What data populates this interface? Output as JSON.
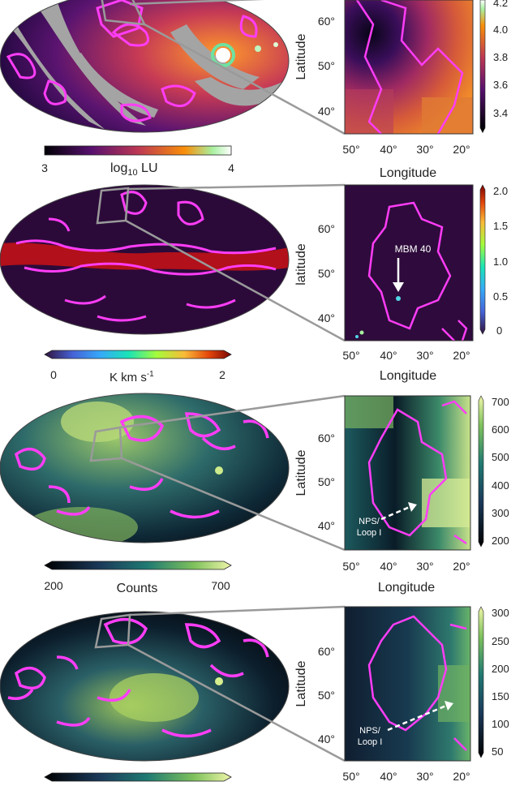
{
  "panels": [
    {
      "id": "lu",
      "cbar_ticks": [
        "3",
        "4"
      ],
      "cbar_label": "log",
      "cbar_label_sub": "10",
      "cbar_label_tail": " LU",
      "zoom_lat_ticks": [
        "60°",
        "50°",
        "40°"
      ],
      "zoom_lon_ticks": [
        "50°",
        "40°",
        "30°",
        "20°"
      ],
      "zoom_ylabel": "Latitude",
      "zoom_xlabel": "Longitude",
      "side_cbar_ticks": [
        "4.2",
        "4.0",
        "3.8",
        "3.6",
        "3.4"
      ],
      "colors": {
        "bg_map": "#6a1e74",
        "hot": "#e8813a",
        "cold": "#1b0c3a"
      }
    },
    {
      "id": "co",
      "cbar_ticks": [
        "0",
        "2"
      ],
      "cbar_label": "K km s",
      "cbar_label_sup": "-1",
      "zoom_lat_ticks": [
        "60°",
        "50°",
        "40°"
      ],
      "zoom_lon_ticks": [
        "50°",
        "40°",
        "30°",
        "20°"
      ],
      "zoom_ylabel": "latitude",
      "zoom_xlabel": "Longitude",
      "side_cbar_ticks": [
        "2.0",
        "1.5",
        "1.0",
        "0.5",
        "0"
      ],
      "annotation": "MBM 40"
    },
    {
      "id": "xray1",
      "cbar_ticks": [
        "200",
        "700"
      ],
      "cbar_label": "Counts",
      "zoom_lat_ticks": [
        "60°",
        "50°",
        "40°"
      ],
      "zoom_lon_ticks": [
        "50°",
        "40°",
        "30°",
        "20°"
      ],
      "zoom_ylabel": "Latitude",
      "zoom_xlabel": "Longitude",
      "side_cbar_ticks": [
        "700",
        "600",
        "500",
        "400",
        "300",
        "200"
      ],
      "annotation": "NPS/\nLoop I",
      "annotation_line1": "NPS/",
      "annotation_line2": "Loop I"
    },
    {
      "id": "xray2",
      "zoom_lat_ticks": [
        "60°",
        "50°",
        "40°"
      ],
      "zoom_lon_ticks": [
        "50°",
        "40°",
        "30°",
        "20°"
      ],
      "zoom_ylabel": "Latitude",
      "side_cbar_ticks": [
        "300",
        "250",
        "200",
        "150",
        "100",
        "50"
      ],
      "annotation_line1": "NPS/",
      "annotation_line2": "Loop I"
    }
  ]
}
